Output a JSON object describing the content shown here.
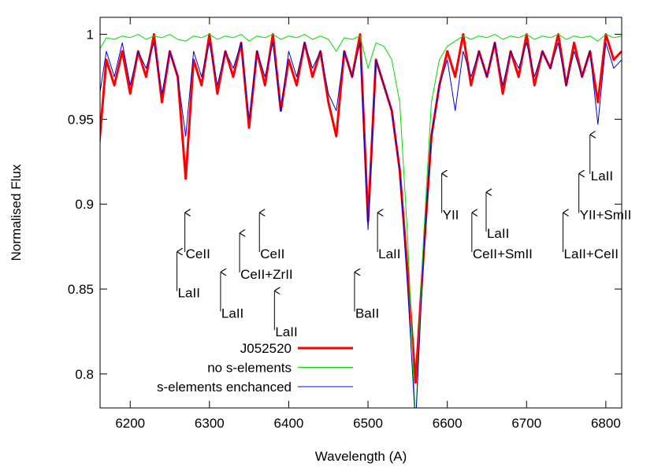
{
  "chart_data": {
    "type": "line",
    "xlabel": "Wavelength (A)",
    "ylabel": "Normalised Flux",
    "x": [
      6160,
      6170,
      6180,
      6190,
      6200,
      6210,
      6220,
      6230,
      6240,
      6250,
      6260,
      6270,
      6280,
      6290,
      6300,
      6310,
      6320,
      6330,
      6340,
      6350,
      6360,
      6370,
      6380,
      6390,
      6400,
      6410,
      6420,
      6430,
      6440,
      6450,
      6460,
      6470,
      6480,
      6490,
      6500,
      6510,
      6520,
      6530,
      6540,
      6550,
      6560,
      6570,
      6580,
      6590,
      6600,
      6610,
      6620,
      6630,
      6640,
      6650,
      6660,
      6670,
      6680,
      6690,
      6700,
      6710,
      6720,
      6730,
      6740,
      6750,
      6760,
      6770,
      6780,
      6790,
      6800,
      6810,
      6820
    ],
    "series": [
      {
        "name": "J052520",
        "color": "#ff0000",
        "width": 3,
        "values": [
          0.93,
          0.985,
          0.97,
          0.99,
          0.965,
          0.99,
          0.975,
          1.0,
          0.96,
          0.99,
          0.975,
          0.915,
          0.985,
          0.97,
          1.0,
          0.965,
          0.99,
          0.975,
          0.995,
          0.945,
          0.99,
          0.97,
          1.0,
          0.955,
          0.985,
          0.97,
          0.995,
          0.975,
          0.99,
          0.96,
          0.94,
          0.99,
          0.975,
          1.0,
          0.89,
          0.985,
          0.97,
          0.955,
          0.92,
          0.86,
          0.795,
          0.87,
          0.94,
          0.97,
          0.99,
          0.975,
          1.0,
          0.97,
          0.99,
          0.975,
          0.995,
          0.965,
          0.99,
          0.975,
          1.0,
          0.97,
          0.99,
          0.98,
          1.0,
          0.97,
          0.995,
          0.975,
          0.99,
          0.96,
          1.0,
          0.985,
          0.99
        ]
      },
      {
        "name": "no s-elements",
        "color": "#00dd00",
        "width": 1,
        "values": [
          0.99,
          0.998,
          0.997,
          0.999,
          0.998,
          1.0,
          0.997,
          0.999,
          0.998,
          1.0,
          0.997,
          0.996,
          0.999,
          0.998,
          1.0,
          0.997,
          0.999,
          0.998,
          1.0,
          0.996,
          0.999,
          0.998,
          1.0,
          0.997,
          0.999,
          0.998,
          1.0,
          0.997,
          0.999,
          0.997,
          0.99,
          0.998,
          0.997,
          0.999,
          0.98,
          0.995,
          0.993,
          0.985,
          0.96,
          0.88,
          0.77,
          0.88,
          0.96,
          0.985,
          0.993,
          0.996,
          0.999,
          0.997,
          0.999,
          0.998,
          1.0,
          0.997,
          0.999,
          0.998,
          1.0,
          0.997,
          0.999,
          0.998,
          1.0,
          0.997,
          0.999,
          0.998,
          0.999,
          0.996,
          1.0,
          0.998,
          0.999
        ]
      },
      {
        "name": "s-elements enchanced",
        "color": "#0000dd",
        "width": 1,
        "values": [
          0.96,
          0.99,
          0.975,
          0.995,
          0.97,
          0.99,
          0.98,
          0.995,
          0.965,
          0.99,
          0.975,
          0.94,
          0.99,
          0.975,
          0.995,
          0.97,
          0.99,
          0.98,
          0.995,
          0.95,
          0.99,
          0.975,
          0.995,
          0.955,
          0.99,
          0.975,
          0.995,
          0.98,
          0.99,
          0.965,
          0.955,
          0.99,
          0.975,
          0.995,
          0.885,
          0.985,
          0.97,
          0.955,
          0.92,
          0.85,
          0.77,
          0.87,
          0.94,
          0.97,
          0.985,
          0.955,
          0.99,
          0.975,
          0.99,
          0.975,
          0.995,
          0.97,
          0.99,
          0.98,
          0.995,
          0.975,
          0.99,
          0.98,
          0.995,
          0.97,
          0.99,
          0.975,
          0.99,
          0.947,
          0.995,
          0.98,
          0.985
        ]
      }
    ],
    "xlim": [
      6162,
      6820
    ],
    "ylim": [
      0.78,
      1.01
    ],
    "xticks": [
      6200,
      6300,
      6400,
      6500,
      6600,
      6700,
      6800
    ],
    "yticks": [
      0.8,
      0.85,
      0.9,
      0.95,
      1
    ],
    "legend": "lower center",
    "annotations": [
      {
        "text": "LaII",
        "x": 6259,
        "y": 0.872
      },
      {
        "text": "CeII",
        "x": 6269,
        "y": 0.895
      },
      {
        "text": "LaII",
        "x": 6314,
        "y": 0.86
      },
      {
        "text": "CeII+ZrII",
        "x": 6338,
        "y": 0.883
      },
      {
        "text": "CeII",
        "x": 6363,
        "y": 0.895
      },
      {
        "text": "LaII",
        "x": 6382,
        "y": 0.849
      },
      {
        "text": "BaII",
        "x": 6483,
        "y": 0.86
      },
      {
        "text": "LaII",
        "x": 6512,
        "y": 0.895
      },
      {
        "text": "YII",
        "x": 6593,
        "y": 0.918
      },
      {
        "text": "CeII+SmII",
        "x": 6631,
        "y": 0.895
      },
      {
        "text": "LaII",
        "x": 6649,
        "y": 0.907
      },
      {
        "text": "LaII+CeII",
        "x": 6746,
        "y": 0.895
      },
      {
        "text": "YII+SmII",
        "x": 6766,
        "y": 0.918
      },
      {
        "text": "LaII",
        "x": 6780,
        "y": 0.941
      }
    ]
  }
}
